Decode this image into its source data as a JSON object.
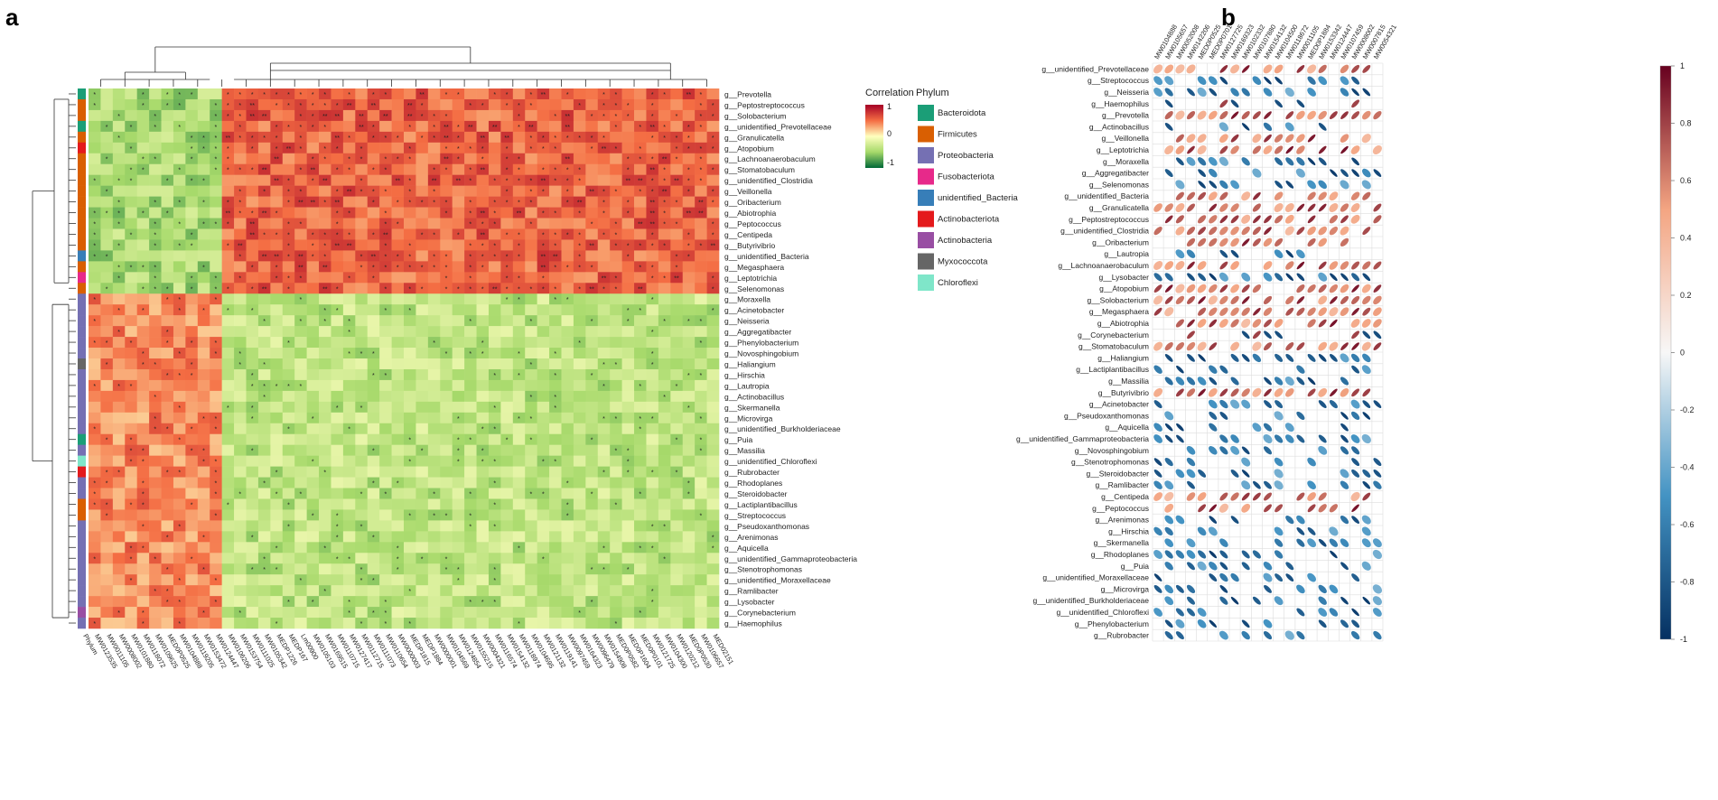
{
  "panels": {
    "a": "a",
    "b": "b"
  },
  "legend": {
    "correlation_title": "Correlation",
    "correlation_ticks": [
      "1",
      "0",
      "-1"
    ],
    "phylum_title": "Phylum",
    "phylum_items": [
      {
        "name": "Bacteroidota",
        "color": "#1b9e77"
      },
      {
        "name": "Firmicutes",
        "color": "#d95f02"
      },
      {
        "name": "Proteobacteria",
        "color": "#7570b3"
      },
      {
        "name": "Fusobacteriota",
        "color": "#e7298a"
      },
      {
        "name": "unidentified_Bacteria",
        "color": "#377eb8"
      },
      {
        "name": "Actinobacteriota",
        "color": "#e41a1c"
      },
      {
        "name": "Actinobacteria",
        "color": "#984ea3"
      },
      {
        "name": "Myxococcota",
        "color": "#666666"
      },
      {
        "name": "Chloroflexi",
        "color": "#7fe6c9"
      }
    ]
  },
  "chart_data": [
    {
      "type": "heatmap",
      "panel": "a",
      "title": "",
      "value_range": [
        -1,
        1
      ],
      "colors": {
        "low": "#1a9641",
        "mid": "#ffffbf",
        "high": "#b2182b"
      },
      "significance_marks": [
        "*",
        "**"
      ],
      "phylum_column_label": "Phylum",
      "rows": [
        "g__Prevotella",
        "g__Peptostreptococcus",
        "g__Solobacterium",
        "g__unidentified_Prevotellaceae",
        "g__Granulicatella",
        "g__Atopobium",
        "g__Lachnoanaerobaculum",
        "g__Stomatobaculum",
        "g__unidentified_Clostridia",
        "g__Veillonella",
        "g__Oribacterium",
        "g__Abiotrophia",
        "g__Peptococcus",
        "g__Centipeda",
        "g__Butyrivibrio",
        "g__unidentified_Bacteria",
        "g__Megasphaera",
        "g__Leptotrichia",
        "g__Selenomonas",
        "g__Moraxella",
        "g__Acinetobacter",
        "g__Neisseria",
        "g__Aggregatibacter",
        "g__Phenylobacterium",
        "g__Novosphingobium",
        "g__Haliangium",
        "g__Hirschia",
        "g__Lautropia",
        "g__Actinobacillus",
        "g__Skermanella",
        "g__Microvirga",
        "g__unidentified_Burkholderiaceae",
        "g__Puia",
        "g__Massilia",
        "g__unidentified_Chloroflexi",
        "g__Rubrobacter",
        "g__Rhodoplanes",
        "g__Steroidobacter",
        "g__Lactiplantibacillus",
        "g__Streptococcus",
        "g__Pseudoxanthomonas",
        "g__Arenimonas",
        "g__Aquicella",
        "g__unidentified_Gammaproteobacteria",
        "g__Stenotrophomonas",
        "g__unidentified_Moraxellaceae",
        "g__Ramlibacter",
        "g__Lysobacter",
        "g__Corynebacterium",
        "g__Haemophilus"
      ],
      "row_phylum": [
        "Bacteroidota",
        "Firmicutes",
        "Firmicutes",
        "Bacteroidota",
        "Firmicutes",
        "Actinobacteriota",
        "Firmicutes",
        "Firmicutes",
        "Firmicutes",
        "Firmicutes",
        "Firmicutes",
        "Firmicutes",
        "Firmicutes",
        "Firmicutes",
        "Firmicutes",
        "unidentified_Bacteria",
        "Firmicutes",
        "Fusobacteriota",
        "Firmicutes",
        "Proteobacteria",
        "Proteobacteria",
        "Proteobacteria",
        "Proteobacteria",
        "Proteobacteria",
        "Proteobacteria",
        "Myxococcota",
        "Proteobacteria",
        "Proteobacteria",
        "Proteobacteria",
        "Proteobacteria",
        "Proteobacteria",
        "Proteobacteria",
        "Bacteroidota",
        "Proteobacteria",
        "Chloroflexi",
        "Actinobacteriota",
        "Proteobacteria",
        "Proteobacteria",
        "Firmicutes",
        "Firmicutes",
        "Proteobacteria",
        "Proteobacteria",
        "Proteobacteria",
        "Proteobacteria",
        "Proteobacteria",
        "Proteobacteria",
        "Proteobacteria",
        "Proteobacteria",
        "Actinobacteria",
        "Proteobacteria"
      ],
      "columns": [
        "MW0123535",
        "MW0011105",
        "MW0008002",
        "MW0101880",
        "MW0118072",
        "MW0109625",
        "MED0P0525",
        "MW0104888",
        "MW0119205",
        "MW0153472",
        "MW0124447",
        "MW0106206",
        "MW0153754",
        "MW0111025",
        "MW0105342",
        "MEDP1226",
        "MEDP167",
        "Lm00900",
        "MW0105103",
        "MW0169515",
        "MW0110715",
        "MW0127417",
        "MW0112715",
        "MW0111073",
        "MW0110654",
        "MW0000003",
        "MEDP1815",
        "MEDP1884",
        "MW0000001",
        "MW0104569",
        "MW0124854",
        "MW0155215",
        "MW0004321",
        "MW0116574",
        "MW0154132",
        "MW0118974",
        "MW0104695",
        "MW0121132",
        "MW0119141",
        "MW0097459",
        "MW0164323",
        "MW0096479",
        "MW0154908",
        "MED0P0582",
        "MED0P1604",
        "MED0P0101",
        "MW0121725",
        "MW0104300",
        "MW0120212",
        "MED0P0530",
        "MW0106657",
        "MED02151"
      ],
      "row_groups": {
        "positive_block_end_row": 19,
        "negative_block_cols": 11
      },
      "block_pattern": "rows 1-19 negative with first 11 columns and positive with remaining columns; rows 20-50 positive with first 11 columns and negative with remaining columns"
    },
    {
      "type": "heatmap",
      "panel": "b",
      "style": "correlation ellipses",
      "value_range": [
        -1,
        1
      ],
      "colorbar_ticks": [
        "1",
        "0.8",
        "0.6",
        "0.4",
        "0.2",
        "0",
        "-0.2",
        "-0.4",
        "-0.6",
        "-0.8",
        "-1"
      ],
      "colors": {
        "low": "#053061",
        "mid": "#f7f7f7",
        "high": "#67001f"
      },
      "columns": [
        "MW0104888",
        "MW0105657",
        "MW0052008",
        "MW0142206",
        "MED0P0525",
        "MED0P0701",
        "MW0127725",
        "MW0169323",
        "MW0102332",
        "MW0107880",
        "MW0154132",
        "MW0104500",
        "MW0118672",
        "MW0011105",
        "MED0P1884",
        "MW0153342",
        "MW0124447",
        "MW0107459",
        "MW0008002",
        "MW0007815",
        "MW0054321"
      ],
      "rows": [
        "g__unidentified_Prevotellaceae",
        "g__Streptococcus",
        "g__Neisseria",
        "g__Haemophilus",
        "g__Prevotella",
        "g__Actinobacillus",
        "g__Veillonella",
        "g__Leptotrichia",
        "g__Moraxella",
        "g__Aggregatibacter",
        "g__Selenomonas",
        "g__unidentified_Bacteria",
        "g__Granulicatella",
        "g__Peptostreptococcus",
        "g__unidentified_Clostridia",
        "g__Oribacterium",
        "g__Lautropia",
        "g__Lachnoanaerobaculum",
        "g__Lysobacter",
        "g__Atopobium",
        "g__Solobacterium",
        "g__Megasphaera",
        "g__Abiotrophia",
        "g__Corynebacterium",
        "g__Stomatobaculum",
        "g__Haliangium",
        "g__Lactiplantibacillus",
        "g__Massilia",
        "g__Butyrivibrio",
        "g__Acinetobacter",
        "g__Pseudoxanthomonas",
        "g__Aquicella",
        "g__unidentified_Gammaproteobacteria",
        "g__Novosphingobium",
        "g__Stenotrophomonas",
        "g__Steroidobacter",
        "g__Ramlibacter",
        "g__Centipeda",
        "g__Peptococcus",
        "g__Arenimonas",
        "g__Hirschia",
        "g__Skermanella",
        "g__Rhodoplanes",
        "g__Puia",
        "g__unidentified_Moraxellaceae",
        "g__Microvirga",
        "g__unidentified_Burkholderiaceae",
        "g__unidentified_Chloroflexi",
        "g__Phenylobacterium",
        "g__Rubrobacter"
      ]
    }
  ]
}
